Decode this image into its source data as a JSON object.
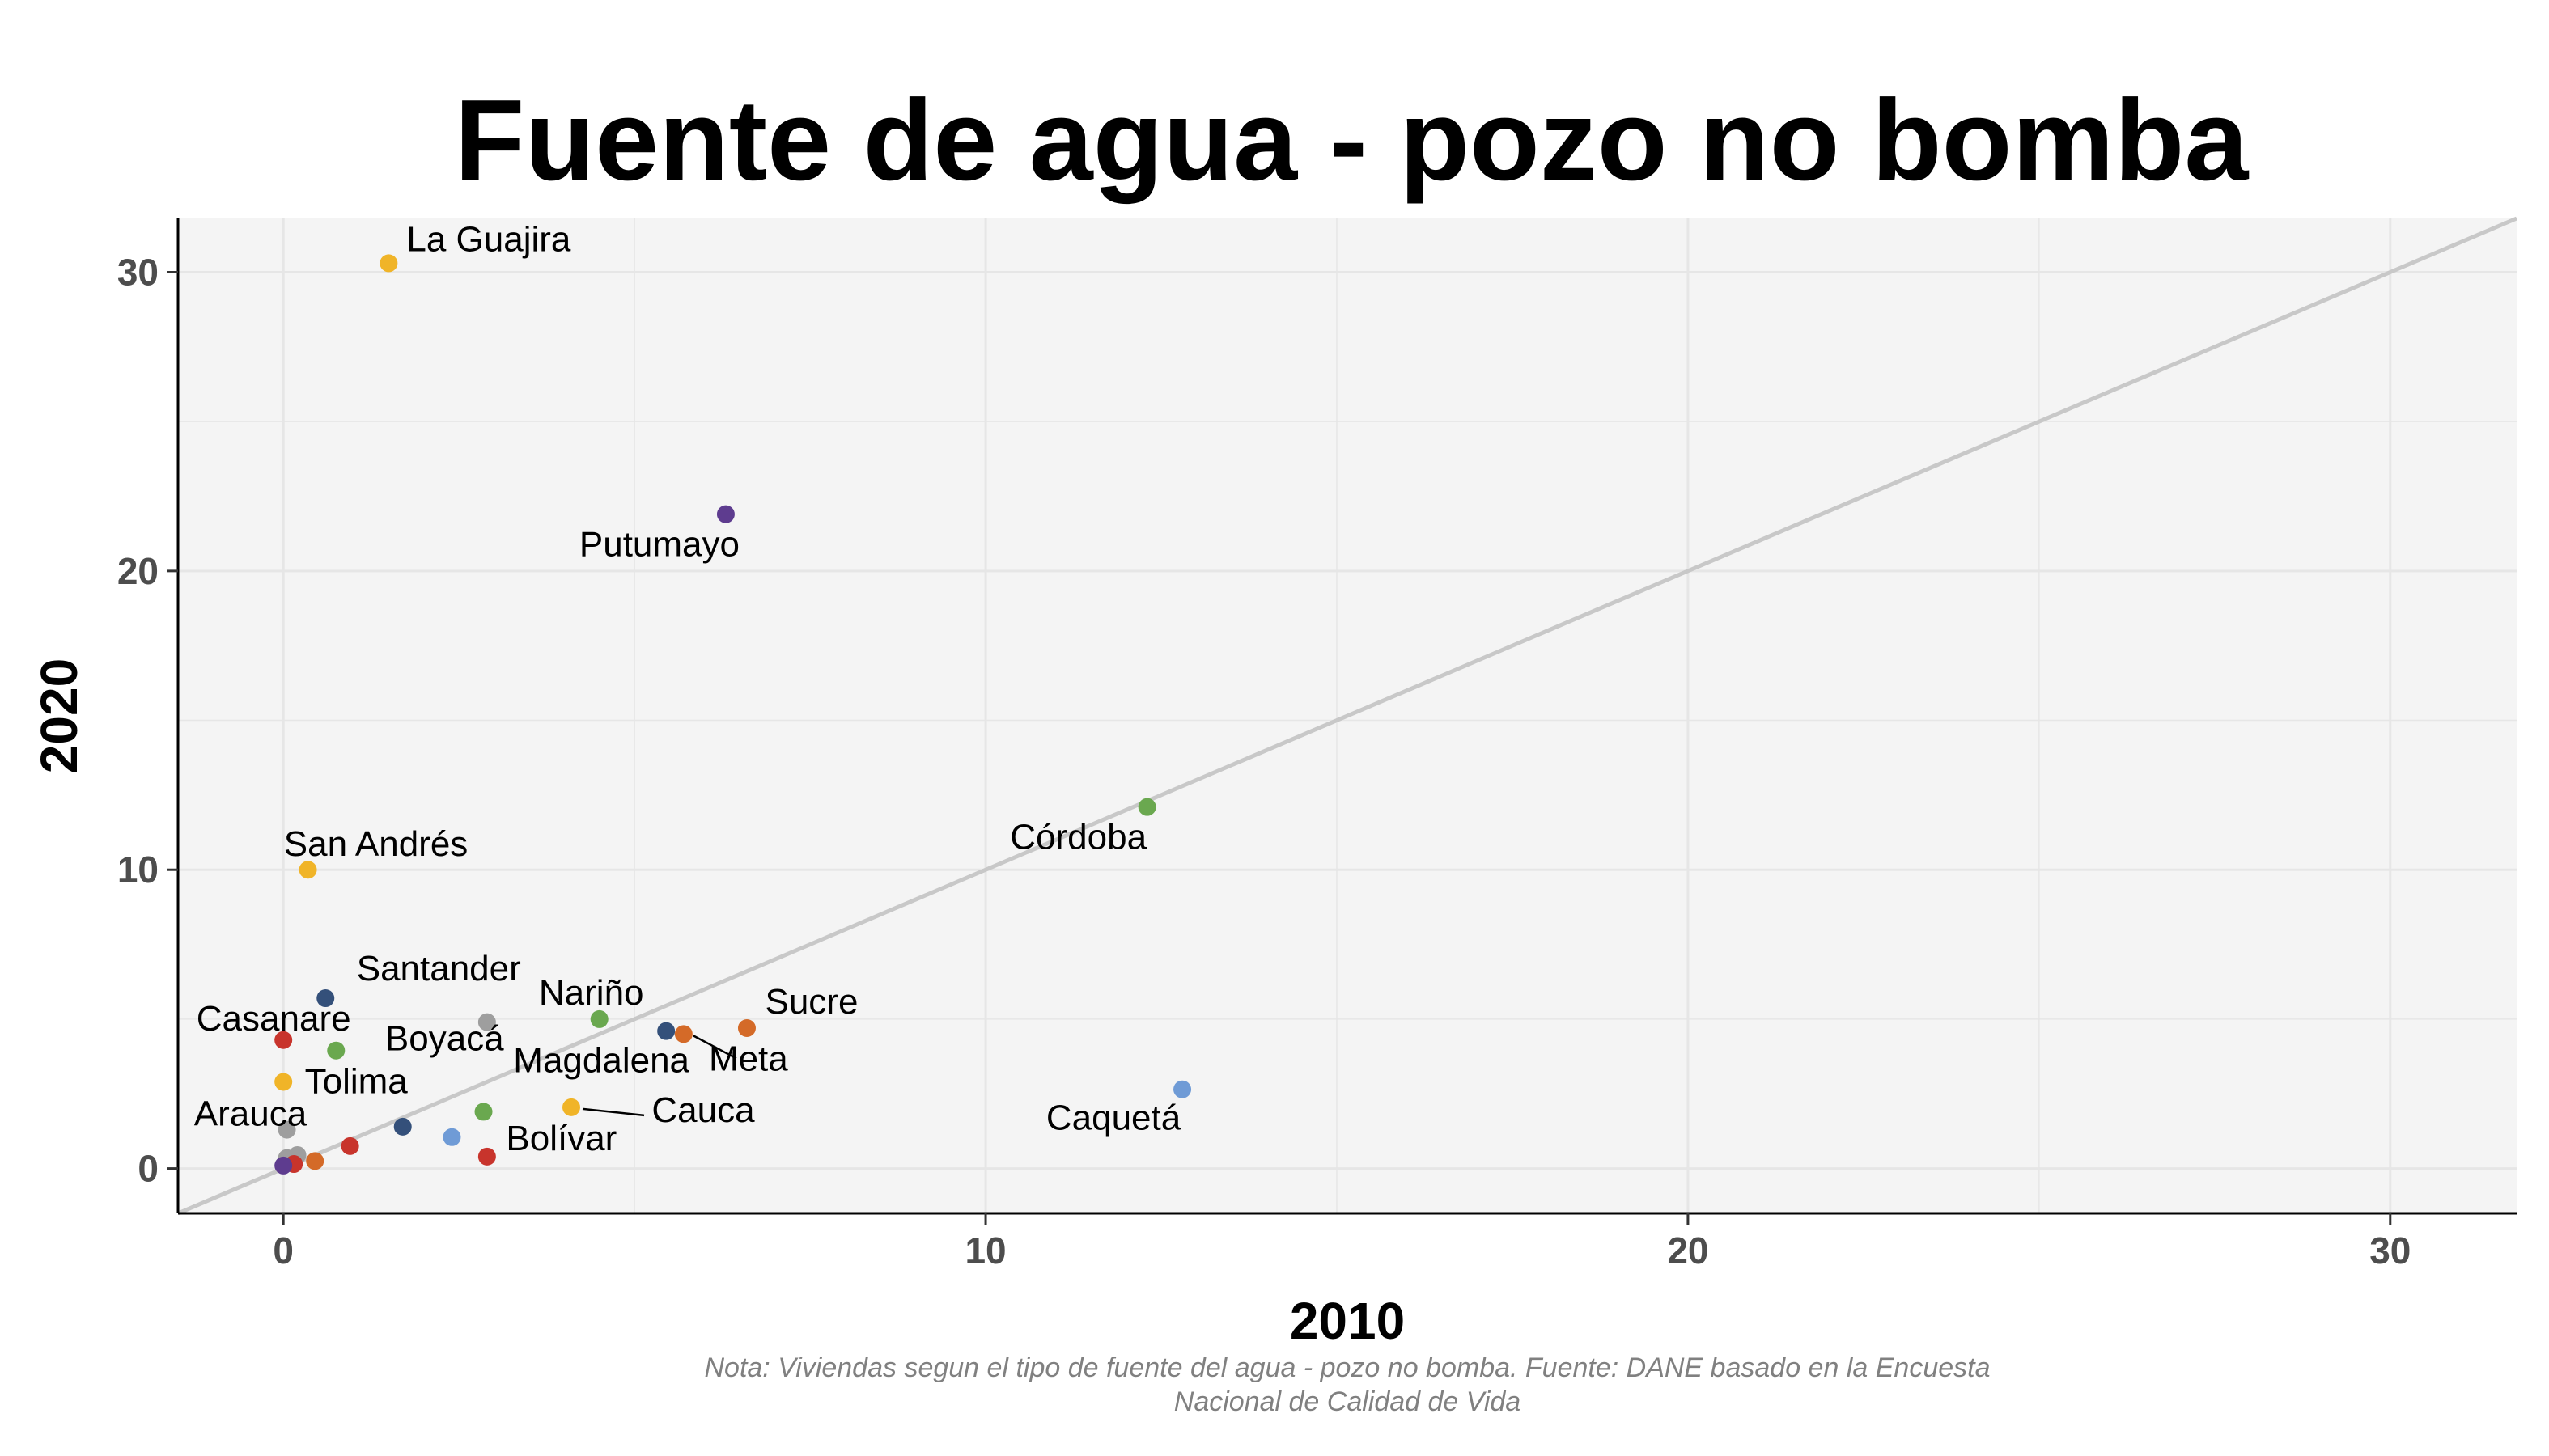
{
  "chart_data": {
    "type": "scatter",
    "title": "Fuente de agua - pozo no bomba",
    "xlabel": "2010",
    "ylabel": "2020",
    "xlim": [
      -1.5,
      31.8
    ],
    "ylim": [
      -1.5,
      31.8
    ],
    "x_ticks": [
      "0",
      "10",
      "20",
      "30"
    ],
    "y_ticks": [
      "0",
      "10",
      "20",
      "30"
    ],
    "grid": true,
    "reference_line": "y = x",
    "caption": [
      "Nota: Viviendas segun el tipo de fuente del agua - pozo no bomba. Fuente: DANE basado en la Encuesta",
      "Nacional de Calidad de Vida"
    ],
    "points": [
      {
        "label": "La Guajira",
        "x": 1.5,
        "y": 30.3,
        "color": "#f0b428"
      },
      {
        "label": "Putumayo",
        "x": 6.3,
        "y": 21.9,
        "color": "#5e3c8f"
      },
      {
        "label": "Córdoba",
        "x": 12.3,
        "y": 12.1,
        "color": "#6aa84f"
      },
      {
        "label": "San Andrés",
        "x": 0.35,
        "y": 10.0,
        "color": "#f0b428"
      },
      {
        "label": "Santander",
        "x": 0.6,
        "y": 5.7,
        "color": "#34507a"
      },
      {
        "label": "",
        "x": 2.9,
        "y": 4.9,
        "color": "#9e9e9e"
      },
      {
        "label": "Nariño",
        "x": 4.5,
        "y": 5.0,
        "color": "#6aa84f"
      },
      {
        "label": "Sucre",
        "x": 6.6,
        "y": 4.7,
        "color": "#d46a28"
      },
      {
        "label": "Magdalena",
        "x": 5.45,
        "y": 4.6,
        "color": "#34507a"
      },
      {
        "label": "Meta",
        "x": 5.7,
        "y": 4.5,
        "color": "#d46a28"
      },
      {
        "label": "Casanare",
        "x": 0.0,
        "y": 4.3,
        "color": "#c8342c"
      },
      {
        "label": "Boyacá",
        "x": 0.75,
        "y": 3.95,
        "color": "#6aa84f"
      },
      {
        "label": "Tolima",
        "x": 0.0,
        "y": 2.9,
        "color": "#f0b428"
      },
      {
        "label": "Caquetá",
        "x": 12.8,
        "y": 2.65,
        "color": "#6f9bd6"
      },
      {
        "label": "Cauca",
        "x": 4.1,
        "y": 2.05,
        "color": "#f0b428"
      },
      {
        "label": "",
        "x": 2.85,
        "y": 1.9,
        "color": "#6aa84f"
      },
      {
        "label": "",
        "x": 1.7,
        "y": 1.4,
        "color": "#34507a"
      },
      {
        "label": "Arauca",
        "x": 0.05,
        "y": 1.3,
        "color": "#9e9e9e"
      },
      {
        "label": "",
        "x": 2.4,
        "y": 1.05,
        "color": "#6f9bd6"
      },
      {
        "label": "",
        "x": 0.95,
        "y": 0.75,
        "color": "#c8342c"
      },
      {
        "label": "Bolívar",
        "x": 2.9,
        "y": 0.4,
        "color": "#c8342c"
      },
      {
        "label": "",
        "x": 0.2,
        "y": 0.45,
        "color": "#9e9e9e"
      },
      {
        "label": "",
        "x": 0.45,
        "y": 0.25,
        "color": "#d46a28"
      },
      {
        "label": "",
        "x": 0.05,
        "y": 0.35,
        "color": "#9e9e9e"
      },
      {
        "label": "",
        "x": 0.15,
        "y": 0.15,
        "color": "#c8342c"
      },
      {
        "label": "",
        "x": 0.0,
        "y": 0.1,
        "color": "#5e3c8f"
      }
    ],
    "colors": {
      "panel": "#f4f4f4",
      "grid": "#e6e6e6",
      "reference_line": "#c8c8c8"
    }
  }
}
